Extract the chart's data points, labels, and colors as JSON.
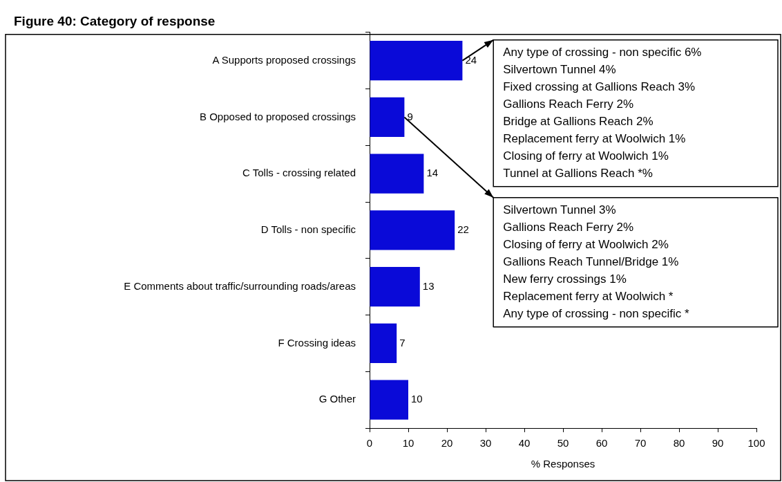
{
  "chart_data": {
    "type": "bar",
    "orientation": "horizontal",
    "title": "Figure 40: Category of response",
    "xlabel": "% Responses",
    "categories": [
      "A Supports proposed crossings",
      "B Opposed to proposed crossings",
      "C Tolls - crossing related",
      "D Tolls - non specific",
      "E Comments about traffic/surrounding roads/areas",
      "F Crossing ideas",
      "G Other"
    ],
    "values": [
      24,
      9,
      14,
      22,
      13,
      7,
      10
    ],
    "color": "#0a0ad8",
    "xlim": [
      0,
      100
    ],
    "xticks": [
      0,
      10,
      20,
      30,
      40,
      50,
      60,
      70,
      80,
      90,
      100
    ],
    "data_labels": true,
    "annotations": [
      "Any type of crossing - non specific 6%",
      "Silvertown Tunnel 4%",
      "Fixed crossing at Gallions Reach 3%",
      "Gallions Reach Ferry 2%",
      "Bridge at Gallions Reach 2%",
      "Replacement ferry at Woolwich 1%",
      "Closing of ferry at Woolwich 1%",
      "Tunnel at Gallions Reach *%",
      "Silvertown Tunnel 3%",
      "Gallions Reach Ferry 2%",
      "Closing of ferry at Woolwich 2%",
      "Gallions Reach Tunnel/Bridge 1%",
      "New ferry crossings 1%",
      "Replacement ferry at Woolwich *",
      "Any type of crossing - non specific *"
    ]
  }
}
